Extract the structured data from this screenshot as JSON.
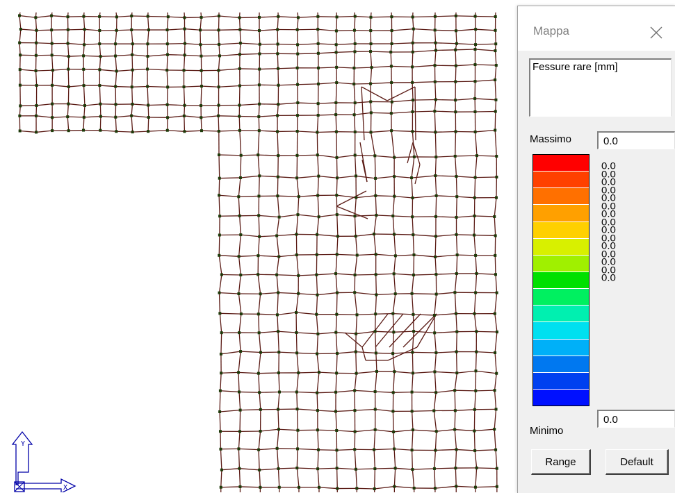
{
  "mesh": {
    "line_color": "#5a1a14",
    "node_color": "#1e3a0a"
  },
  "axes": {
    "y_label": "Y",
    "x_label": "X",
    "color": "#0000a8"
  },
  "palette": {
    "title": "Mappa",
    "close_icon": "close-icon",
    "result_name": "Fessure rare [mm]",
    "max_label": "Massimo",
    "max_value": "0.0",
    "min_label": "Minimo",
    "min_value": "0.0",
    "bands": [
      "#ff0000",
      "#ff4000",
      "#ff7000",
      "#ffa000",
      "#ffd000",
      "#d8f000",
      "#a0f000",
      "#00e000",
      "#00f060",
      "#00f0b0",
      "#00e0f0",
      "#00b0f8",
      "#0078f0",
      "#0040f0",
      "#0010ff"
    ],
    "scale_values": [
      "0.0",
      "0.0",
      "0.0",
      "0.0",
      "0.0",
      "0.0",
      "0.0",
      "0.0",
      "0.0",
      "0.0",
      "0.0",
      "0.0",
      "0.0",
      "0.0",
      "0.0"
    ],
    "range_label": "Range",
    "default_label": "Default"
  }
}
